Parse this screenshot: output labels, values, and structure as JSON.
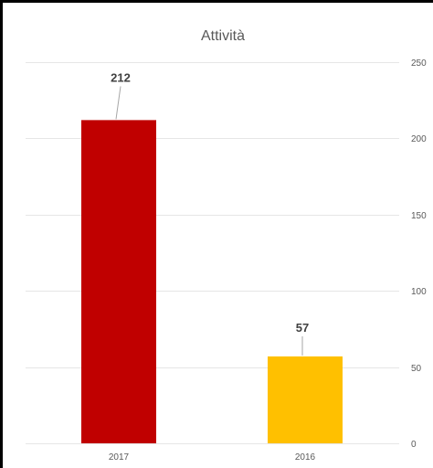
{
  "chart_data": {
    "type": "bar",
    "title": "Attività",
    "categories": [
      "2017",
      "2016"
    ],
    "values": [
      212,
      57
    ],
    "colors": [
      "#c00000",
      "#ffc000"
    ],
    "ylim": [
      0,
      250
    ],
    "yticks": [
      0,
      50,
      100,
      150,
      200,
      250
    ],
    "y_axis_position": "right",
    "grid": true,
    "legend": "none",
    "data_labels": true
  }
}
